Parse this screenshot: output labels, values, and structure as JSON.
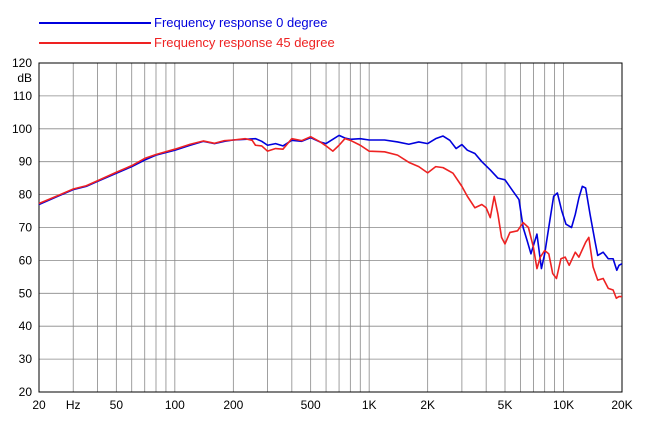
{
  "chart_data": {
    "type": "line",
    "x_scale": "log",
    "xlim": [
      20,
      20000
    ],
    "ylim": [
      20,
      120
    ],
    "y_unit": "dB",
    "grid": true,
    "legend_position": "top-left",
    "x_tick_labels": [
      {
        "value": 20,
        "label": "20"
      },
      {
        "value": 30,
        "label": "Hz"
      },
      {
        "value": 50,
        "label": "50"
      },
      {
        "value": 100,
        "label": "100"
      },
      {
        "value": 200,
        "label": "200"
      },
      {
        "value": 500,
        "label": "500"
      },
      {
        "value": 1000,
        "label": "1K"
      },
      {
        "value": 2000,
        "label": "2K"
      },
      {
        "value": 5000,
        "label": "5K"
      },
      {
        "value": 10000,
        "label": "10K"
      },
      {
        "value": 20000,
        "label": "20K"
      }
    ],
    "y_ticks": [
      20,
      30,
      40,
      50,
      60,
      70,
      80,
      90,
      100,
      110,
      120
    ],
    "series": [
      {
        "name": "Frequency response 0 degree",
        "color": "#0000dd",
        "points": [
          [
            20,
            77
          ],
          [
            25,
            79.5
          ],
          [
            30,
            81.5
          ],
          [
            35,
            82.5
          ],
          [
            40,
            84
          ],
          [
            50,
            86.5
          ],
          [
            60,
            88.5
          ],
          [
            70,
            90.5
          ],
          [
            80,
            92
          ],
          [
            100,
            93.5
          ],
          [
            120,
            95
          ],
          [
            140,
            96.2
          ],
          [
            160,
            95.5
          ],
          [
            180,
            96.2
          ],
          [
            200,
            96.6
          ],
          [
            230,
            96.8
          ],
          [
            260,
            97
          ],
          [
            280,
            96.2
          ],
          [
            300,
            95
          ],
          [
            330,
            95.5
          ],
          [
            360,
            94.8
          ],
          [
            400,
            96.5
          ],
          [
            450,
            96.2
          ],
          [
            500,
            97.3
          ],
          [
            560,
            96
          ],
          [
            600,
            95.5
          ],
          [
            650,
            96.8
          ],
          [
            700,
            98
          ],
          [
            750,
            97.2
          ],
          [
            800,
            96.8
          ],
          [
            900,
            97
          ],
          [
            1000,
            96.6
          ],
          [
            1200,
            96.6
          ],
          [
            1400,
            96
          ],
          [
            1600,
            95.3
          ],
          [
            1800,
            96
          ],
          [
            2000,
            95.5
          ],
          [
            2200,
            97
          ],
          [
            2400,
            97.8
          ],
          [
            2600,
            96.5
          ],
          [
            2800,
            94
          ],
          [
            3000,
            95.2
          ],
          [
            3200,
            93.5
          ],
          [
            3500,
            92.5
          ],
          [
            3800,
            90
          ],
          [
            4200,
            87.5
          ],
          [
            4600,
            85
          ],
          [
            5000,
            84.5
          ],
          [
            5500,
            81
          ],
          [
            5900,
            78.5
          ],
          [
            6200,
            70
          ],
          [
            6500,
            66
          ],
          [
            6800,
            62
          ],
          [
            7000,
            64.5
          ],
          [
            7300,
            68
          ],
          [
            7700,
            57.5
          ],
          [
            8000,
            62
          ],
          [
            8500,
            72
          ],
          [
            8900,
            79.5
          ],
          [
            9300,
            80.5
          ],
          [
            9800,
            75
          ],
          [
            10300,
            71
          ],
          [
            11000,
            70
          ],
          [
            11500,
            74
          ],
          [
            12000,
            79
          ],
          [
            12500,
            82.5
          ],
          [
            13000,
            82
          ],
          [
            13700,
            74
          ],
          [
            14500,
            66
          ],
          [
            15000,
            61.5
          ],
          [
            16000,
            62.5
          ],
          [
            17000,
            60.5
          ],
          [
            18000,
            60.5
          ],
          [
            18800,
            57
          ],
          [
            19300,
            58.5
          ],
          [
            20000,
            59
          ]
        ]
      },
      {
        "name": "Frequency response 45 degree",
        "color": "#ee2222",
        "points": [
          [
            20,
            77.3
          ],
          [
            25,
            79.7
          ],
          [
            30,
            81.7
          ],
          [
            35,
            82.7
          ],
          [
            40,
            84.2
          ],
          [
            50,
            86.8
          ],
          [
            60,
            88.8
          ],
          [
            70,
            91
          ],
          [
            80,
            92.2
          ],
          [
            100,
            93.8
          ],
          [
            120,
            95.3
          ],
          [
            140,
            96.3
          ],
          [
            160,
            95.6
          ],
          [
            180,
            96.4
          ],
          [
            200,
            96.6
          ],
          [
            230,
            97
          ],
          [
            250,
            96.5
          ],
          [
            260,
            95
          ],
          [
            280,
            94.8
          ],
          [
            300,
            93.2
          ],
          [
            330,
            94
          ],
          [
            360,
            93.8
          ],
          [
            400,
            97
          ],
          [
            450,
            96.4
          ],
          [
            500,
            97.6
          ],
          [
            560,
            96
          ],
          [
            600,
            94.8
          ],
          [
            650,
            93.2
          ],
          [
            700,
            95
          ],
          [
            750,
            97
          ],
          [
            800,
            96.5
          ],
          [
            900,
            95
          ],
          [
            1000,
            93.2
          ],
          [
            1200,
            93
          ],
          [
            1400,
            92
          ],
          [
            1600,
            89.8
          ],
          [
            1800,
            88.5
          ],
          [
            2000,
            86.6
          ],
          [
            2200,
            88.5
          ],
          [
            2400,
            88.2
          ],
          [
            2700,
            86.5
          ],
          [
            3000,
            82.5
          ],
          [
            3200,
            79.5
          ],
          [
            3500,
            76
          ],
          [
            3800,
            77
          ],
          [
            4000,
            76
          ],
          [
            4200,
            73
          ],
          [
            4400,
            79.5
          ],
          [
            4600,
            74
          ],
          [
            4800,
            67
          ],
          [
            5000,
            65
          ],
          [
            5300,
            68.5
          ],
          [
            5800,
            69
          ],
          [
            6200,
            71.5
          ],
          [
            6600,
            70
          ],
          [
            7000,
            64
          ],
          [
            7300,
            57.5
          ],
          [
            7600,
            61
          ],
          [
            8000,
            63
          ],
          [
            8400,
            62
          ],
          [
            8800,
            56
          ],
          [
            9200,
            54.5
          ],
          [
            9700,
            60.5
          ],
          [
            10200,
            61
          ],
          [
            10700,
            58.5
          ],
          [
            11500,
            62.5
          ],
          [
            12000,
            61
          ],
          [
            13000,
            65.5
          ],
          [
            13500,
            67
          ],
          [
            14200,
            58
          ],
          [
            15000,
            54
          ],
          [
            16000,
            54.5
          ],
          [
            17000,
            51.5
          ],
          [
            18000,
            51
          ],
          [
            18700,
            48.5
          ],
          [
            19300,
            49
          ],
          [
            20000,
            49
          ]
        ]
      }
    ]
  }
}
